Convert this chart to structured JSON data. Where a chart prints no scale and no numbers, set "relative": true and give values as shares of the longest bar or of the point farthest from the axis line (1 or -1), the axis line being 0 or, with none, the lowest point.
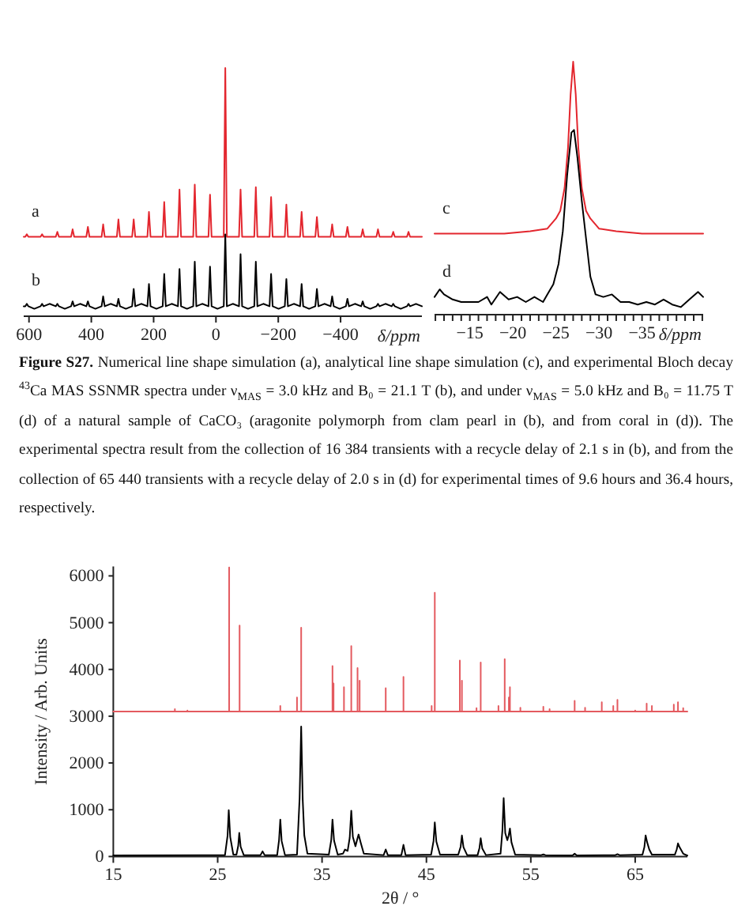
{
  "chart_data": [
    {
      "type": "line",
      "relative": true,
      "xlim": [
        617,
        -661
      ],
      "xticks": [
        600,
        400,
        200,
        0,
        -200,
        -400
      ],
      "xlabel": "δ/ppm",
      "annotations": [
        "Figure S27.",
        "Numerical line shape simulation (a), analytical line shape simulation (c), and experimental Bloch decay $^{43}$Ca MAS SSNMR spectra under ν$_{MAS}$ = 3.0 kHz and B₀ = 21.1 T (b), and under ν$_{MAS}$ = 5.0 kHz and B₀ = 11.75 T (d) of a natural sample of CaCO₃ (aragonite polymorph from clam pearl in (b), and from coral in (d)).  The experimental spectra result from the collection of 16 384 transients with a recycle delay of 2.1 s in (b), and from the collection of 65 440 transients with a recycle delay of 2.0 s in (d) for experimental times of 9.6 hours and 36.4 hours, respectively."
      ],
      "series": [
        {
          "name": "a",
          "color": "#e3262e",
          "x": [
            617,
            612,
            607,
            602,
            563,
            558,
            553,
            514,
            509,
            504,
            465,
            460,
            455,
            416,
            411,
            406,
            367,
            362,
            357,
            318,
            313,
            308,
            269,
            264,
            259,
            220,
            215,
            210,
            171,
            166,
            161,
            122,
            117,
            112,
            73,
            68,
            63,
            24,
            19,
            14,
            -25,
            -30,
            -35,
            -74,
            -79,
            -84,
            -123,
            -128,
            -133,
            -172,
            -177,
            -182,
            -221,
            -226,
            -231,
            -270,
            -275,
            -280,
            -319,
            -324,
            -329,
            -368,
            -373,
            -378,
            -417,
            -422,
            -427,
            -466,
            -471,
            -476,
            -515,
            -520,
            -525,
            -564,
            -569,
            -574,
            -613,
            -618,
            -623,
            -661
          ],
          "values": [
            0.32,
            0.32,
            0.33,
            0.32,
            0.32,
            0.33,
            0.32,
            0.32,
            0.34,
            0.32,
            0.32,
            0.35,
            0.32,
            0.32,
            0.36,
            0.32,
            0.32,
            0.37,
            0.32,
            0.32,
            0.39,
            0.32,
            0.32,
            0.39,
            0.32,
            0.32,
            0.42,
            0.32,
            0.32,
            0.46,
            0.32,
            0.32,
            0.51,
            0.32,
            0.32,
            0.53,
            0.32,
            0.32,
            0.49,
            0.32,
            0.32,
            1,
            0.32,
            0.32,
            0.51,
            0.32,
            0.32,
            0.52,
            0.32,
            0.32,
            0.48,
            0.32,
            0.32,
            0.45,
            0.32,
            0.32,
            0.42,
            0.32,
            0.32,
            0.4,
            0.32,
            0.32,
            0.37,
            0.32,
            0.32,
            0.36,
            0.32,
            0.32,
            0.35,
            0.32,
            0.32,
            0.35,
            0.32,
            0.32,
            0.34,
            0.32,
            0.32,
            0.34,
            0.32,
            0.32
          ]
        },
        {
          "name": "b",
          "color": "#000000",
          "x": [
            617,
            612,
            607,
            602,
            583,
            563,
            558,
            553,
            534,
            514,
            509,
            504,
            485,
            465,
            460,
            455,
            436,
            416,
            411,
            406,
            387,
            367,
            362,
            357,
            338,
            318,
            313,
            308,
            289,
            269,
            264,
            259,
            240,
            220,
            215,
            210,
            191,
            171,
            166,
            161,
            142,
            122,
            117,
            112,
            93,
            73,
            68,
            63,
            44,
            24,
            19,
            14,
            -5,
            -25,
            -30,
            -35,
            -54,
            -74,
            -79,
            -84,
            -103,
            -123,
            -128,
            -133,
            -152,
            -172,
            -177,
            -182,
            -201,
            -221,
            -226,
            -231,
            -250,
            -270,
            -275,
            -280,
            -299,
            -319,
            -324,
            -329,
            -348,
            -368,
            -373,
            -378,
            -397,
            -417,
            -422,
            -427,
            -446,
            -466,
            -471,
            -476,
            -495,
            -515,
            -520,
            -525,
            -544,
            -564,
            -569,
            -574,
            -593,
            -613,
            -618,
            -623,
            -642,
            -661
          ],
          "values": [
            0.04,
            0.04,
            0.05,
            0.04,
            0.03,
            0.04,
            0.05,
            0.04,
            0.05,
            0.04,
            0.05,
            0.04,
            0.03,
            0.04,
            0.06,
            0.04,
            0.05,
            0.04,
            0.06,
            0.04,
            0.03,
            0.04,
            0.08,
            0.04,
            0.05,
            0.04,
            0.07,
            0.04,
            0.03,
            0.04,
            0.11,
            0.04,
            0.05,
            0.04,
            0.13,
            0.04,
            0.03,
            0.04,
            0.17,
            0.04,
            0.05,
            0.04,
            0.19,
            0.04,
            0.03,
            0.04,
            0.22,
            0.04,
            0.05,
            0.04,
            0.2,
            0.04,
            0.03,
            0.04,
            0.33,
            0.04,
            0.05,
            0.04,
            0.25,
            0.04,
            0.03,
            0.04,
            0.22,
            0.04,
            0.05,
            0.04,
            0.17,
            0.04,
            0.03,
            0.04,
            0.15,
            0.04,
            0.05,
            0.04,
            0.13,
            0.04,
            0.03,
            0.04,
            0.11,
            0.04,
            0.05,
            0.04,
            0.08,
            0.04,
            0.03,
            0.04,
            0.07,
            0.04,
            0.05,
            0.04,
            0.06,
            0.04,
            0.03,
            0.04,
            0.05,
            0.04,
            0.05,
            0.04,
            0.05,
            0.04,
            0.03,
            0.04,
            0.05,
            0.04,
            0.05,
            0.04
          ]
        }
      ]
    },
    {
      "type": "line",
      "relative": true,
      "xlim": [
        -10.9,
        -42.1
      ],
      "xlabel": "δ/ppm",
      "xticks": [
        {
          "value": -11,
          "label": null
        },
        {
          "value": -12,
          "label": null
        },
        {
          "value": -13,
          "label": null
        },
        {
          "value": -14,
          "label": null
        },
        -15,
        {
          "value": -16,
          "label": null
        },
        {
          "value": -17,
          "label": null
        },
        {
          "value": -18,
          "label": null
        },
        {
          "value": -19,
          "label": null
        },
        -20,
        {
          "value": -21,
          "label": null
        },
        {
          "value": -22,
          "label": null
        },
        {
          "value": -23,
          "label": null
        },
        {
          "value": -24,
          "label": null
        },
        -25,
        {
          "value": -26,
          "label": null
        },
        {
          "value": -27,
          "label": null
        },
        {
          "value": -28,
          "label": null
        },
        {
          "value": -29,
          "label": null
        },
        -30,
        {
          "value": -31,
          "label": null
        },
        {
          "value": -32,
          "label": null
        },
        {
          "value": -33,
          "label": null
        },
        {
          "value": -34,
          "label": null
        },
        -35,
        {
          "value": -36,
          "label": null
        },
        {
          "value": -37,
          "label": null
        },
        {
          "value": -38,
          "label": null
        },
        {
          "value": -39,
          "label": null
        },
        {
          "value": -40,
          "label": null
        },
        {
          "value": -41,
          "label": null
        },
        {
          "value": -42,
          "label": null
        }
      ],
      "series": [
        {
          "name": "c",
          "color": "#e3262e",
          "x": [
            -10.9,
            -19,
            -22,
            -24,
            -25,
            -25.5,
            -26,
            -26.4,
            -26.7,
            -27,
            -27.3,
            -27.6,
            -28,
            -28.5,
            -29,
            -30,
            -32,
            -35,
            -42.1
          ],
          "values": [
            0.32,
            0.32,
            0.33,
            0.34,
            0.38,
            0.41,
            0.5,
            0.66,
            0.87,
            1,
            0.87,
            0.66,
            0.5,
            0.41,
            0.38,
            0.34,
            0.33,
            0.32,
            0.32
          ]
        },
        {
          "name": "d",
          "color": "#000000",
          "x": [
            -10.9,
            -11.5,
            -12,
            -13,
            -14,
            -15,
            -16,
            -17,
            -17.5,
            -18.5,
            -19.5,
            -20.5,
            -21.5,
            -22.5,
            -23.5,
            -24,
            -24.7,
            -25.3,
            -25.8,
            -26.3,
            -26.8,
            -27.1,
            -27.5,
            -28,
            -28.5,
            -29,
            -29.6,
            -30.5,
            -31.5,
            -32.5,
            -33.5,
            -34.5,
            -35.5,
            -36.5,
            -37.5,
            -38.5,
            -39.5,
            -40.5,
            -41.5,
            -42.1
          ],
          "values": [
            0.07,
            0.1,
            0.08,
            0.06,
            0.05,
            0.05,
            0.05,
            0.07,
            0.04,
            0.09,
            0.06,
            0.07,
            0.05,
            0.07,
            0.05,
            0.08,
            0.12,
            0.2,
            0.33,
            0.55,
            0.72,
            0.73,
            0.62,
            0.45,
            0.3,
            0.15,
            0.08,
            0.07,
            0.08,
            0.05,
            0.05,
            0.04,
            0.05,
            0.04,
            0.06,
            0.04,
            0.03,
            0.06,
            0.09,
            0.07
          ]
        }
      ]
    },
    {
      "type": "line",
      "xlim": [
        15,
        70
      ],
      "xticks": [
        15,
        25,
        35,
        45,
        55,
        65
      ],
      "ylim": [
        0,
        6200
      ],
      "yticks": [
        0,
        1000,
        2000,
        3000,
        4000,
        5000,
        6000
      ],
      "xlabel": "2θ / °",
      "ylabel": "Intensity / Arb. Units",
      "series": [
        {
          "color": "#e45a5f",
          "x": [
            15,
            20.9,
            20.9,
            20.9,
            22.1,
            22.1,
            22.1,
            26.1,
            26.1,
            26.1,
            27.1,
            27.1,
            27.1,
            31.0,
            31.0,
            31.0,
            32.6,
            32.6,
            32.6,
            33.0,
            33.0,
            33.0,
            36.0,
            36.0,
            36.0,
            36.1,
            36.1,
            36.1,
            37.1,
            37.1,
            37.1,
            37.8,
            37.8,
            37.8,
            38.4,
            38.4,
            38.4,
            38.6,
            38.6,
            38.6,
            41.1,
            41.1,
            41.1,
            42.8,
            42.8,
            42.8,
            45.5,
            45.5,
            45.5,
            45.8,
            45.8,
            45.8,
            48.2,
            48.2,
            48.2,
            48.4,
            48.4,
            48.4,
            49.8,
            49.8,
            49.8,
            50.2,
            50.2,
            50.2,
            51.9,
            51.9,
            51.9,
            52.5,
            52.5,
            52.5,
            52.9,
            52.9,
            52.9,
            53.0,
            53.0,
            53.0,
            54.0,
            54.0,
            54.0,
            56.2,
            56.2,
            56.2,
            56.8,
            56.8,
            56.8,
            59.2,
            59.2,
            59.2,
            60.2,
            60.2,
            60.2,
            61.8,
            61.8,
            61.8,
            62.9,
            62.9,
            62.9,
            63.3,
            63.3,
            63.3,
            65.0,
            65.0,
            65.0,
            66.1,
            66.1,
            66.1,
            66.6,
            66.6,
            66.6,
            68.7,
            68.7,
            68.7,
            69.1,
            69.1,
            69.1,
            69.6,
            69.6,
            69.6,
            70
          ],
          "values": [
            3100,
            3100,
            3150,
            3100,
            3100,
            3120,
            3100,
            3100,
            6180,
            3100,
            3100,
            4940,
            3100,
            3100,
            3220,
            3100,
            3100,
            3400,
            3100,
            3100,
            4890,
            3100,
            3100,
            4070,
            3100,
            3100,
            3700,
            3100,
            3100,
            3620,
            3100,
            3100,
            4500,
            3100,
            3100,
            4030,
            3100,
            3100,
            3760,
            3100,
            3100,
            3600,
            3100,
            3100,
            3840,
            3100,
            3100,
            3220,
            3100,
            3100,
            5640,
            3100,
            3100,
            4190,
            3100,
            3100,
            3760,
            3100,
            3100,
            3170,
            3100,
            3100,
            4150,
            3100,
            3100,
            3220,
            3100,
            3100,
            4220,
            3100,
            3100,
            3400,
            3100,
            3100,
            3620,
            3100,
            3100,
            3180,
            3100,
            3100,
            3200,
            3100,
            3100,
            3150,
            3100,
            3100,
            3330,
            3100,
            3100,
            3180,
            3100,
            3100,
            3300,
            3100,
            3100,
            3220,
            3100,
            3100,
            3350,
            3100,
            3100,
            3120,
            3100,
            3100,
            3270,
            3100,
            3100,
            3220,
            3100,
            3100,
            3250,
            3100,
            3100,
            3300,
            3100,
            3100,
            3170,
            3100,
            3100
          ]
        },
        {
          "color": "#000000",
          "x": [
            15,
            25.7,
            25.95,
            26.06,
            26.2,
            26.5,
            26.8,
            26.97,
            27.07,
            27.2,
            27.5,
            29.1,
            29.3,
            29.5,
            30.7,
            30.88,
            31.0,
            31.13,
            31.45,
            32.6,
            32.85,
            33.0,
            33.15,
            33.3,
            33.6,
            35.65,
            35.88,
            36.0,
            36.15,
            36.5,
            37.0,
            37.2,
            37.45,
            37.65,
            37.8,
            37.95,
            38.2,
            38.35,
            38.5,
            38.7,
            39.0,
            40.9,
            41.1,
            41.3,
            42.6,
            42.8,
            43.0,
            45.45,
            45.68,
            45.8,
            45.95,
            46.3,
            48.05,
            48.28,
            48.4,
            48.55,
            48.9,
            49.9,
            50.08,
            50.2,
            50.35,
            50.7,
            52.1,
            52.28,
            52.4,
            52.55,
            52.75,
            52.88,
            53.0,
            53.15,
            53.5,
            56.0,
            56.2,
            56.4,
            59.0,
            59.2,
            59.4,
            63.1,
            63.3,
            63.5,
            65.7,
            65.88,
            66.0,
            66.15,
            66.35,
            66.6,
            68.8,
            68.98,
            69.1,
            69.25,
            69.6,
            70.0
          ],
          "values": [
            25,
            30,
            450,
            990,
            420,
            40,
            40,
            230,
            505,
            210,
            30,
            30,
            110,
            30,
            30,
            350,
            790,
            330,
            30,
            40,
            1250,
            2780,
            1200,
            450,
            60,
            40,
            350,
            790,
            340,
            40,
            60,
            150,
            120,
            400,
            980,
            420,
            220,
            350,
            470,
            300,
            60,
            30,
            150,
            30,
            30,
            250,
            30,
            40,
            330,
            730,
            320,
            40,
            40,
            210,
            450,
            200,
            30,
            30,
            180,
            390,
            170,
            30,
            60,
            560,
            1250,
            500,
            350,
            450,
            600,
            300,
            40,
            30,
            45,
            30,
            25,
            60,
            25,
            30,
            50,
            30,
            40,
            200,
            450,
            300,
            150,
            40,
            40,
            150,
            280,
            200,
            60,
            20
          ]
        }
      ]
    }
  ]
}
